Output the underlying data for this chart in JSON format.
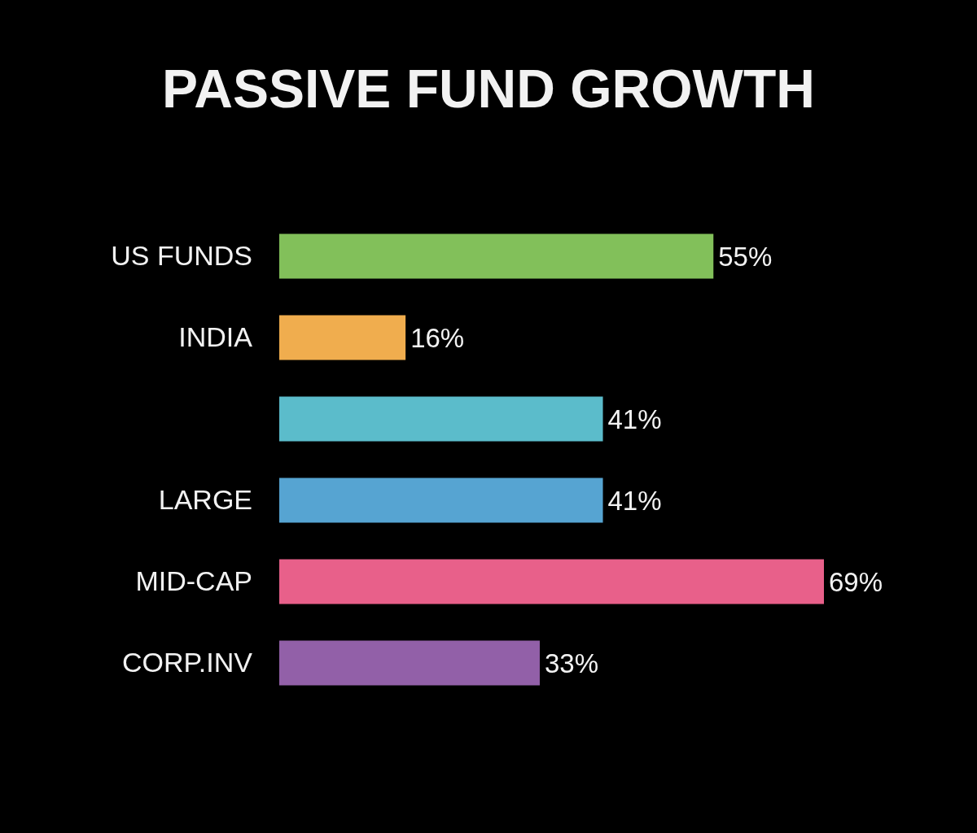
{
  "chart_data": {
    "type": "bar",
    "orientation": "horizontal",
    "title": "PASSIVE FUND GROWTH",
    "categories": [
      "US FUNDS",
      "INDIA",
      null,
      "LARGE",
      "MID-CAP",
      "CORP.INV"
    ],
    "values": [
      55,
      16,
      41,
      41,
      69,
      33
    ],
    "value_labels": [
      "55%",
      "16%",
      "41%",
      "41%",
      "69%",
      "33%"
    ],
    "colors": [
      "#82c05a",
      "#f0ad4e",
      "#5bbccb",
      "#56a4d2",
      "#e8608a",
      "#9260a8"
    ]
  }
}
